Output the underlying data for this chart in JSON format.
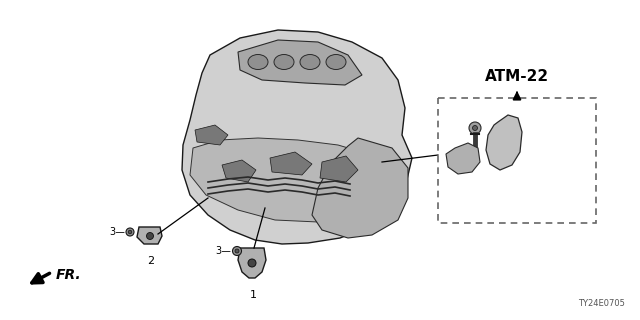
{
  "bg_color": "#ffffff",
  "part_label_text": "ATM-22",
  "part_ref_code": "TY24E0705",
  "fr_arrow_label": "FR.",
  "dashed_box_color": "#666666",
  "callout_line_color": "#000000"
}
